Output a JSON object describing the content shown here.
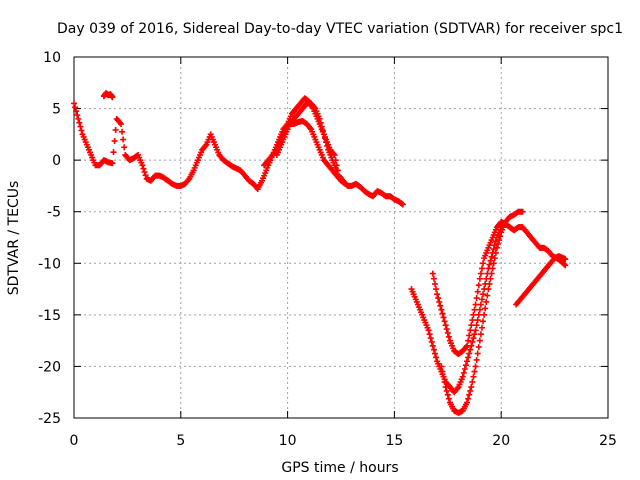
{
  "chart_data": {
    "type": "scatter",
    "title": "Day 039 of 2016, Sidereal Day-to-day VTEC variation (SDTVAR) for receiver spc1",
    "xlabel": "GPS time / hours",
    "ylabel": "SDTVAR / TECUs",
    "xlim": [
      0,
      25
    ],
    "ylim": [
      -25,
      10
    ],
    "xticks": [
      0,
      5,
      10,
      15,
      20,
      25
    ],
    "yticks": [
      -25,
      -20,
      -15,
      -10,
      -5,
      0,
      5,
      10
    ],
    "grid": true,
    "marker": "+",
    "color": "#ff0000",
    "series": [
      {
        "x": [
          0.0,
          0.2,
          0.4,
          0.6,
          0.8,
          1.0,
          1.2,
          1.4,
          1.6,
          1.8,
          2.0,
          2.2,
          2.4,
          2.6,
          2.8,
          3.0,
          3.2,
          3.4,
          3.6,
          3.8,
          4.0,
          4.2,
          4.4,
          4.6,
          4.8,
          5.0,
          5.2,
          5.4,
          5.6,
          5.8,
          6.0,
          6.2,
          6.4,
          6.6,
          6.8,
          7.0,
          7.2,
          7.4,
          7.6,
          7.8,
          8.0,
          8.2,
          8.4,
          8.6,
          8.8,
          9.0,
          9.2,
          9.4,
          9.6,
          9.8,
          10.0,
          10.2,
          10.4,
          10.6,
          10.8,
          11.0,
          11.2,
          11.4,
          11.6,
          11.8,
          12.0,
          12.2,
          12.4,
          12.6,
          12.8,
          13.0,
          13.2,
          13.4,
          13.6,
          13.8,
          14.0,
          14.2,
          14.4,
          14.6,
          14.8,
          15.0,
          15.2,
          15.4
        ],
        "y": [
          5.5,
          4.0,
          2.5,
          1.5,
          0.5,
          -0.5,
          -0.5,
          0.0,
          -0.2,
          -0.3,
          4.0,
          3.5,
          0.5,
          0.0,
          0.2,
          0.5,
          -0.5,
          -1.8,
          -2.0,
          -1.5,
          -1.5,
          -1.7,
          -2.0,
          -2.3,
          -2.5,
          -2.5,
          -2.3,
          -1.8,
          -1.0,
          0.0,
          1.0,
          1.5,
          2.5,
          1.5,
          0.5,
          0.0,
          -0.3,
          -0.6,
          -0.8,
          -1.0,
          -1.5,
          -2.0,
          -2.3,
          -2.8,
          -2.0,
          -1.0,
          0.0,
          1.0,
          2.0,
          3.0,
          3.5,
          4.5,
          5.0,
          5.5,
          6.0,
          5.7,
          5.0,
          4.0,
          3.0,
          2.0,
          1.0,
          0.5,
          -1.5,
          -2.0,
          -2.5,
          -2.5,
          -2.3,
          -2.6,
          -3.0,
          -3.3,
          -3.5,
          -3.0,
          -3.2,
          -3.5,
          -3.5,
          -3.8,
          -4.0,
          -4.3
        ]
      },
      {
        "x": [
          1.4,
          1.5,
          1.6,
          1.7,
          1.8
        ],
        "y": [
          6.2,
          6.5,
          6.3,
          6.4,
          6.1
        ]
      },
      {
        "x": [
          8.9,
          9.1,
          9.3,
          9.5,
          9.7,
          9.9,
          10.1,
          10.3,
          10.5,
          10.7,
          10.9,
          11.1,
          11.3,
          11.5,
          11.7,
          11.9,
          12.1,
          12.3,
          12.5,
          12.7
        ],
        "y": [
          -0.5,
          0.0,
          0.5,
          1.0,
          2.0,
          3.0,
          3.5,
          3.5,
          3.7,
          3.8,
          3.5,
          3.0,
          2.0,
          1.0,
          0.0,
          -0.5,
          -1.0,
          -1.5,
          -2.0,
          -2.3
        ]
      },
      {
        "x": [
          9.5,
          9.7,
          9.9,
          10.1,
          10.3,
          10.5,
          10.7,
          10.9,
          11.1,
          11.3,
          11.5,
          11.7,
          11.9,
          12.1,
          12.3
        ],
        "y": [
          0.5,
          1.5,
          2.5,
          3.5,
          4.0,
          4.5,
          5.0,
          5.5,
          5.5,
          5.0,
          4.0,
          2.5,
          1.0,
          0.0,
          -1.0
        ]
      },
      {
        "x": [
          15.8,
          16.0,
          16.2,
          16.4,
          16.6,
          16.8,
          17.0,
          17.2,
          17.4,
          17.6,
          17.8,
          18.0,
          18.2,
          18.4,
          18.6,
          18.8,
          19.0,
          19.2,
          19.4,
          19.6,
          19.8,
          20.0,
          20.2,
          20.4,
          20.6,
          20.8,
          21.0
        ],
        "y": [
          -12.5,
          -13.5,
          -14.5,
          -15.5,
          -16.5,
          -18.0,
          -19.5,
          -20.5,
          -21.5,
          -22.0,
          -22.5,
          -22.0,
          -21.0,
          -19.5,
          -18.0,
          -16.5,
          -14.5,
          -12.5,
          -10.5,
          -9.0,
          -7.5,
          -6.5,
          -6.0,
          -5.5,
          -5.3,
          -5.0,
          -5.0
        ]
      },
      {
        "x": [
          16.8,
          17.0,
          17.2,
          17.4,
          17.6,
          17.8,
          18.0,
          18.2,
          18.4,
          18.6,
          18.8,
          19.0,
          19.2,
          19.4,
          19.6,
          19.8,
          20.0,
          20.2,
          20.4,
          20.6,
          20.8,
          21.0,
          21.2,
          21.4,
          21.6,
          21.8,
          22.0,
          22.2,
          22.4,
          22.6,
          22.8,
          23.0
        ],
        "y": [
          -11.0,
          -13.0,
          -14.5,
          -16.0,
          -17.5,
          -18.5,
          -18.8,
          -18.5,
          -18.0,
          -16.0,
          -14.0,
          -11.5,
          -9.5,
          -8.5,
          -7.5,
          -6.5,
          -6.0,
          -6.2,
          -6.5,
          -6.8,
          -6.5,
          -6.5,
          -7.0,
          -7.5,
          -8.0,
          -8.5,
          -8.5,
          -8.8,
          -9.3,
          -9.5,
          -9.8,
          -10.2
        ]
      },
      {
        "x": [
          17.2,
          17.4,
          17.6,
          17.8,
          18.0,
          18.2,
          18.4,
          18.6,
          18.8,
          19.0,
          19.2,
          19.4,
          19.6,
          19.8,
          20.0,
          20.2
        ],
        "y": [
          -20.0,
          -22.0,
          -23.5,
          -24.3,
          -24.5,
          -24.3,
          -23.5,
          -22.0,
          -20.0,
          -17.5,
          -15.0,
          -12.5,
          -10.5,
          -8.5,
          -7.0,
          -6.0
        ]
      },
      {
        "x": [
          20.7,
          20.9,
          21.1,
          21.3,
          21.5,
          21.7,
          21.9,
          22.1,
          22.3,
          22.5,
          22.7,
          22.9,
          23.0
        ],
        "y": [
          -14.0,
          -13.5,
          -13.0,
          -12.5,
          -12.0,
          -11.5,
          -11.0,
          -10.5,
          -10.0,
          -9.5,
          -9.3,
          -9.5,
          -9.6
        ]
      }
    ]
  }
}
